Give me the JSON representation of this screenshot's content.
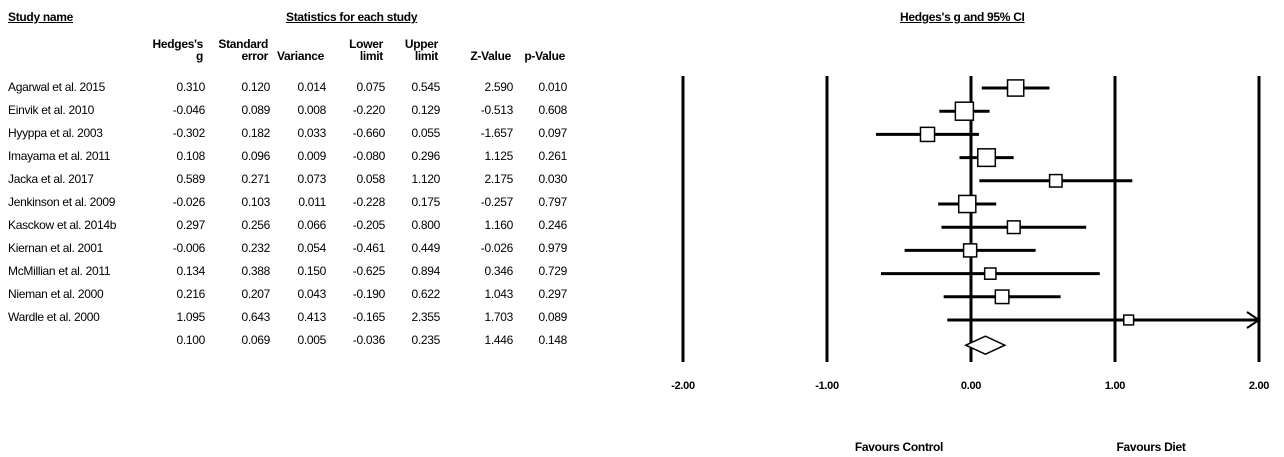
{
  "headers": {
    "study_name": "Study name",
    "statistics": "Statistics for each study",
    "forest_title": "Hedges's g and 95% CI",
    "columns": [
      [
        "Hedges's",
        "g"
      ],
      [
        "Standard",
        "error"
      ],
      [
        "",
        "Variance"
      ],
      [
        "Lower",
        "limit"
      ],
      [
        "Upper",
        "limit"
      ],
      [
        "",
        "Z-Value"
      ],
      [
        "",
        "p-Value"
      ]
    ]
  },
  "rows": [
    {
      "study": "Agarwal et al. 2015",
      "g": "0.310",
      "se": "0.120",
      "var": "0.014",
      "ll": "0.075",
      "ul": "0.545",
      "z": "2.590",
      "p": "0.010"
    },
    {
      "study": "Einvik et al. 2010",
      "g": "-0.046",
      "se": "0.089",
      "var": "0.008",
      "ll": "-0.220",
      "ul": "0.129",
      "z": "-0.513",
      "p": "0.608"
    },
    {
      "study": "Hyyppa et al. 2003",
      "g": "-0.302",
      "se": "0.182",
      "var": "0.033",
      "ll": "-0.660",
      "ul": "0.055",
      "z": "-1.657",
      "p": "0.097"
    },
    {
      "study": "Imayama et al. 2011",
      "g": "0.108",
      "se": "0.096",
      "var": "0.009",
      "ll": "-0.080",
      "ul": "0.296",
      "z": "1.125",
      "p": "0.261"
    },
    {
      "study": "Jacka et al. 2017",
      "g": "0.589",
      "se": "0.271",
      "var": "0.073",
      "ll": "0.058",
      "ul": "1.120",
      "z": "2.175",
      "p": "0.030"
    },
    {
      "study": "Jenkinson et al. 2009",
      "g": "-0.026",
      "se": "0.103",
      "var": "0.011",
      "ll": "-0.228",
      "ul": "0.175",
      "z": "-0.257",
      "p": "0.797"
    },
    {
      "study": "Kasckow et al. 2014b",
      "g": "0.297",
      "se": "0.256",
      "var": "0.066",
      "ll": "-0.205",
      "ul": "0.800",
      "z": "1.160",
      "p": "0.246"
    },
    {
      "study": "Kiernan et al. 2001",
      "g": "-0.006",
      "se": "0.232",
      "var": "0.054",
      "ll": "-0.461",
      "ul": "0.449",
      "z": "-0.026",
      "p": "0.979"
    },
    {
      "study": "McMillian et al. 2011",
      "g": "0.134",
      "se": "0.388",
      "var": "0.150",
      "ll": "-0.625",
      "ul": "0.894",
      "z": "0.346",
      "p": "0.729"
    },
    {
      "study": "Nieman et al. 2000",
      "g": "0.216",
      "se": "0.207",
      "var": "0.043",
      "ll": "-0.190",
      "ul": "0.622",
      "z": "1.043",
      "p": "0.297"
    },
    {
      "study": "Wardle et al. 2000",
      "g": "1.095",
      "se": "0.643",
      "var": "0.413",
      "ll": "-0.165",
      "ul": "2.355",
      "z": "1.703",
      "p": "0.089"
    }
  ],
  "summary": {
    "study": "",
    "g": "0.100",
    "se": "0.069",
    "var": "0.005",
    "ll": "-0.036",
    "ul": "0.235",
    "z": "1.446",
    "p": "0.148"
  },
  "chart_data": {
    "type": "forest",
    "title": "Hedges's g and 95% CI",
    "xlim": [
      -2,
      2
    ],
    "x_ticks": [
      "-2.00",
      "-1.00",
      "0.00",
      "1.00",
      "2.00"
    ],
    "x_tick_values": [
      -2,
      -1,
      0,
      1,
      2
    ],
    "left_label": "Favours Control",
    "right_label": "Favours Diet",
    "studies": [
      {
        "name": "Agarwal et al. 2015",
        "g": 0.31,
        "lower": 0.075,
        "upper": 0.545,
        "weight": 0.014
      },
      {
        "name": "Einvik et al. 2010",
        "g": -0.046,
        "lower": -0.22,
        "upper": 0.129,
        "weight": 0.008
      },
      {
        "name": "Hyyppa et al. 2003",
        "g": -0.302,
        "lower": -0.66,
        "upper": 0.055,
        "weight": 0.033
      },
      {
        "name": "Imayama et al. 2011",
        "g": 0.108,
        "lower": -0.08,
        "upper": 0.296,
        "weight": 0.009
      },
      {
        "name": "Jacka et al. 2017",
        "g": 0.589,
        "lower": 0.058,
        "upper": 1.12,
        "weight": 0.073
      },
      {
        "name": "Jenkinson et al. 2009",
        "g": -0.026,
        "lower": -0.228,
        "upper": 0.175,
        "weight": 0.011
      },
      {
        "name": "Kasckow et al. 2014b",
        "g": 0.297,
        "lower": -0.205,
        "upper": 0.8,
        "weight": 0.066
      },
      {
        "name": "Kiernan et al. 2001",
        "g": -0.006,
        "lower": -0.461,
        "upper": 0.449,
        "weight": 0.054
      },
      {
        "name": "McMillian et al. 2011",
        "g": 0.134,
        "lower": -0.625,
        "upper": 0.894,
        "weight": 0.15
      },
      {
        "name": "Nieman et al. 2000",
        "g": 0.216,
        "lower": -0.19,
        "upper": 0.622,
        "weight": 0.043
      },
      {
        "name": "Wardle et al. 2000",
        "g": 1.095,
        "lower": -0.165,
        "upper": 2.355,
        "weight": 0.413
      }
    ],
    "summary": {
      "g": 0.1,
      "lower": -0.036,
      "upper": 0.235
    }
  }
}
